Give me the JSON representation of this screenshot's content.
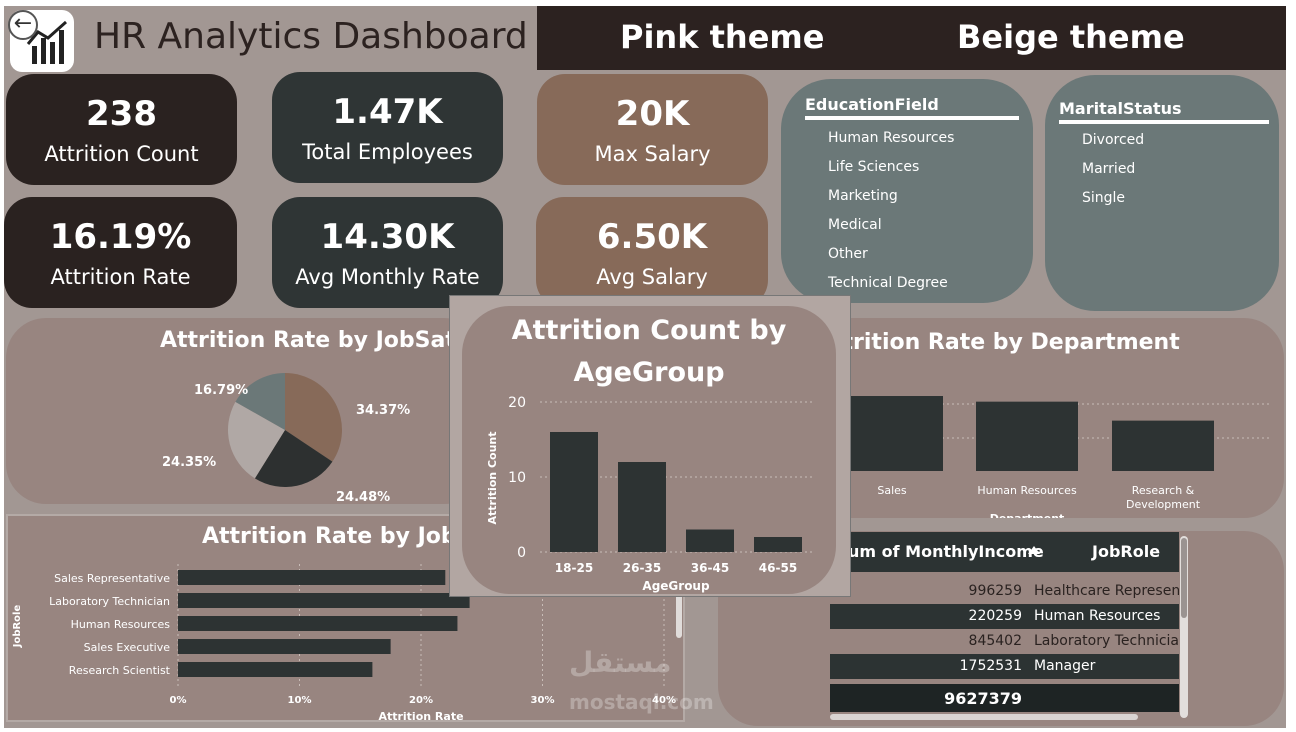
{
  "header": {
    "title": "HR Analytics Dashboard",
    "themes": [
      "Pink theme",
      "Beige theme"
    ]
  },
  "kpis": [
    {
      "value": "238",
      "label": "Attrition Count"
    },
    {
      "value": "1.47K",
      "label": "Total Employees"
    },
    {
      "value": "20K",
      "label": "Max Salary"
    },
    {
      "value": "16.19%",
      "label": "Attrition Rate"
    },
    {
      "value": "14.30K",
      "label": "Avg Monthly Rate"
    },
    {
      "value": "6.50K",
      "label": "Avg Salary"
    }
  ],
  "slicers": {
    "education": {
      "title": "EducationField",
      "items": [
        "Human Resources",
        "Life Sciences",
        "Marketing",
        "Medical",
        "Other",
        "Technical Degree"
      ]
    },
    "marital": {
      "title": "MaritalStatus",
      "items": [
        "Divorced",
        "Married",
        "Single"
      ]
    }
  },
  "panels": {
    "job_satisfaction": {
      "title": "Attrition Rate by JobSatis"
    },
    "department": {
      "title": "ttrition Rate by Department"
    },
    "job_role": {
      "title": "Attrition Rate by JobRo"
    }
  },
  "popup": {
    "title": "Attrition Count by AgeGroup"
  },
  "chart_data": [
    {
      "type": "pie",
      "title": "Attrition Rate by JobSatis",
      "labels": [
        "34.37%",
        "24.48%",
        "24.35%",
        "16.79%"
      ],
      "values": [
        34.37,
        24.48,
        24.35,
        16.79
      ],
      "colors": [
        "#876a59",
        "#2d3030",
        "#b0a8a5",
        "#6b7878"
      ]
    },
    {
      "type": "bar",
      "title": "Attrition Count by AgeGroup",
      "categories": [
        "18-25",
        "26-35",
        "36-45",
        "46-55"
      ],
      "values": [
        16,
        12,
        3,
        2
      ],
      "xlabel": "AgeGroup",
      "ylabel": "Attrition Count",
      "yticks": [
        "0",
        "10",
        "20"
      ],
      "ylim": [
        0,
        20
      ]
    },
    {
      "type": "bar",
      "title": "ttrition Rate by Department",
      "categories": [
        "Sales",
        "Human Resources",
        "Research & Development"
      ],
      "values": [
        20.6,
        19.05,
        13.84
      ],
      "xlabel": "Department",
      "ylim": [
        0,
        25
      ]
    },
    {
      "type": "bar",
      "orientation": "horizontal",
      "title": "Attrition Rate by JobRo",
      "categories": [
        "Sales Representative",
        "Laboratory Technician",
        "Human Resources",
        "Sales Executive",
        "Research Scientist"
      ],
      "values": [
        22,
        24,
        23,
        17.5,
        16
      ],
      "xlabel": "Attrition Rate",
      "ylabel": "JobRole",
      "xticks": [
        "0%",
        "10%",
        "20%",
        "30%",
        "40%"
      ],
      "xlim": [
        0,
        40
      ]
    }
  ],
  "table": {
    "columns": [
      "um of MonthlyIncome",
      "JobRole"
    ],
    "rows": [
      {
        "income": "996259",
        "role": "Healthcare Represent"
      },
      {
        "income": "220259",
        "role": "Human Resources"
      },
      {
        "income": "845402",
        "role": "Laboratory Technician"
      },
      {
        "income": "1752531",
        "role": "Manager"
      }
    ],
    "total": "9627379"
  },
  "watermark": {
    "arabic": "مستقل",
    "latin": "mostaql.com"
  }
}
